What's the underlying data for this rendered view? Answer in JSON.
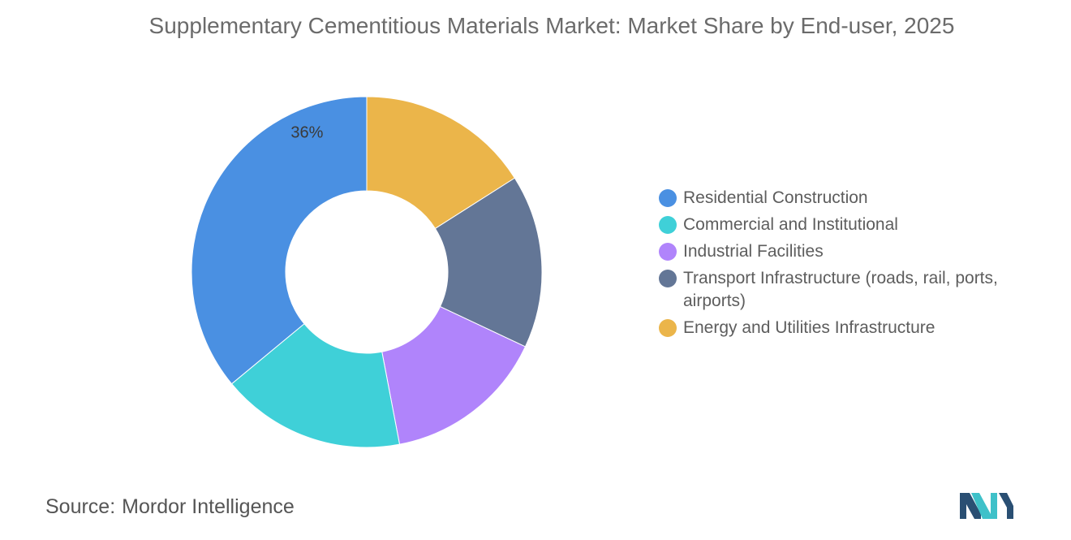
{
  "title": "Supplementary Cementitious Materials Market: Market Share by End-user, 2025",
  "chart_data": {
    "type": "pie",
    "variant": "donut",
    "title": "Supplementary Cementitious Materials Market: Market Share by End-user, 2025",
    "categories": [
      "Residential Construction",
      "Commercial and Institutional",
      "Industrial Facilities",
      "Transport Infrastructure (roads, rail, ports, airports)",
      "Energy and Utilities Infrastructure"
    ],
    "values": [
      36,
      17,
      15,
      16,
      16
    ],
    "colors": [
      "#4a90e2",
      "#3fd0d8",
      "#b084fb",
      "#637696",
      "#ebb54a"
    ],
    "data_labels": [
      "36%",
      "",
      "",
      "",
      ""
    ],
    "legend_position": "right"
  },
  "legend": [
    {
      "label": "Residential Construction",
      "color": "#4a90e2"
    },
    {
      "label": "Commercial and Institutional",
      "color": "#3fd0d8"
    },
    {
      "label": "Industrial Facilities",
      "color": "#b084fb"
    },
    {
      "label": "Transport Infrastructure (roads, rail, ports, airports)",
      "color": "#637696"
    },
    {
      "label": "Energy and Utilities Infrastructure",
      "color": "#ebb54a"
    }
  ],
  "source": {
    "key": "Source:",
    "value": "Mordor Intelligence"
  },
  "logo": {
    "icon": "mordor-intelligence-logo-icon",
    "colors": [
      "#2a4f73",
      "#3fc1c9"
    ]
  }
}
